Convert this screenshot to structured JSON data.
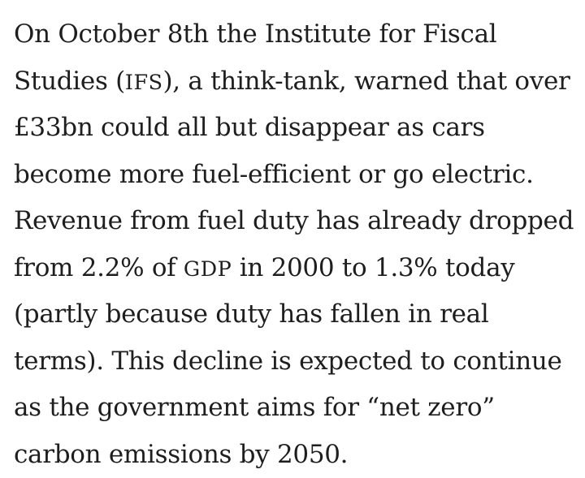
{
  "article": {
    "lines": [
      "On October 8th the Institute for Fiscal",
      "Studies (",
      "IFS",
      "), a think-tank, warned that over",
      "£33bn could all but disappear as cars",
      "become more fuel-efficient or go electric.",
      "Revenue from fuel duty has already dropped",
      "from 2.2% of ",
      "GDP",
      " in 2000 to 1.3% today",
      "(partly because duty has fallen in real",
      "terms). This decline is expected to continue",
      "as the government aims for “net zero”",
      "carbon emissions by 2050."
    ]
  }
}
